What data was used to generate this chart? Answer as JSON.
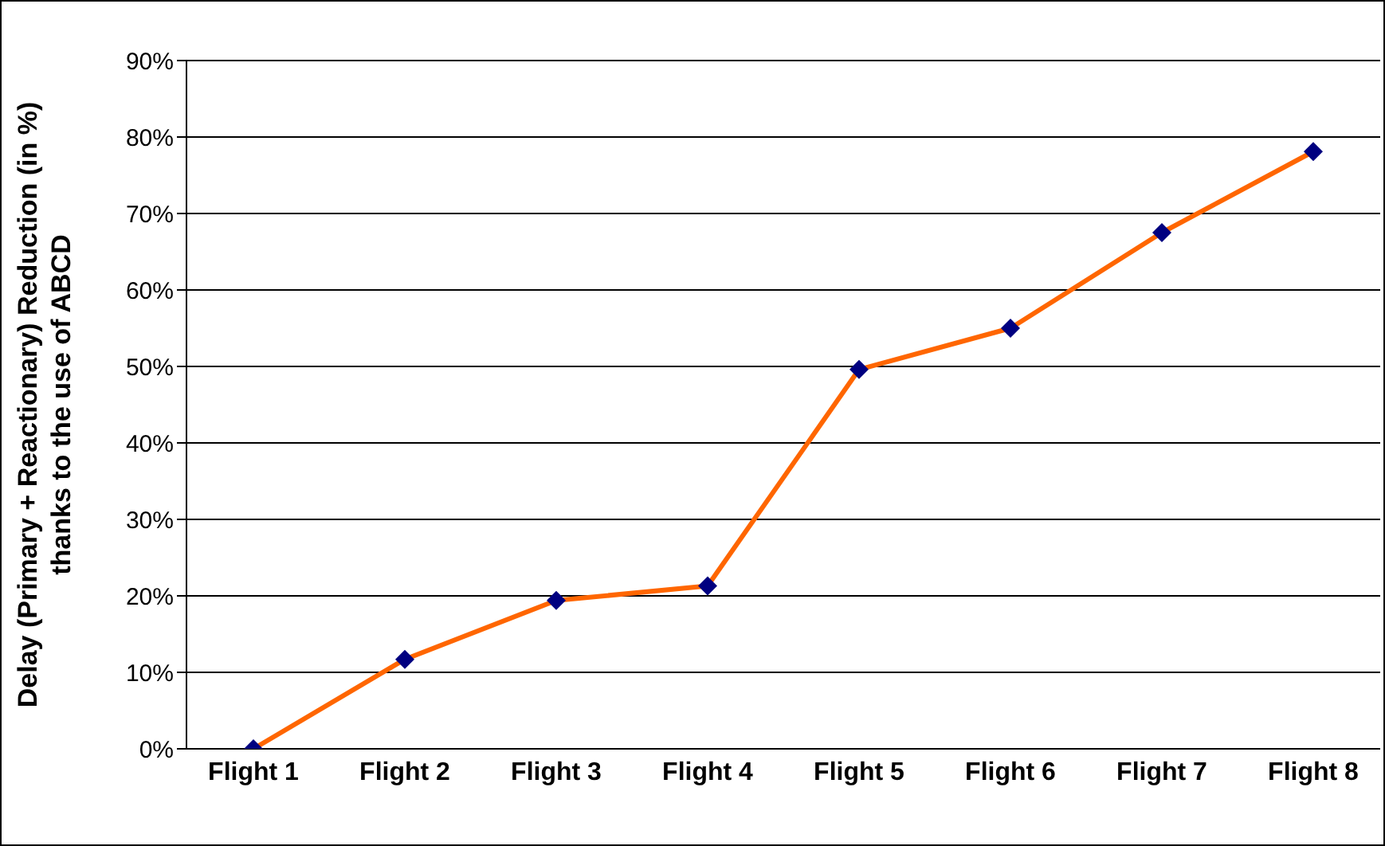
{
  "chart_data": {
    "type": "line",
    "ylabel": "Delay (Primary + Reactionary) Reduction (in %)\nthanks to the use of ABCD",
    "categories": [
      "Flight 1",
      "Flight 2",
      "Flight 3",
      "Flight 4",
      "Flight 5",
      "Flight 6",
      "Flight 7",
      "Flight 8"
    ],
    "series": [
      {
        "color": "#ff6600",
        "colors": [
          "#000080",
          "#000080",
          "#000080",
          "#000080",
          "#000080",
          "#000080",
          "#000080",
          "#000080"
        ],
        "values": [
          0,
          11.7,
          19.4,
          21.3,
          49.6,
          55,
          67.5,
          78.1
        ]
      }
    ],
    "ylim": [
      0,
      90
    ],
    "yticks": [
      {
        "value": 0,
        "label": "0%"
      },
      {
        "value": 10,
        "label": "10%"
      },
      {
        "value": 20,
        "label": "20%"
      },
      {
        "value": 30,
        "label": "30%"
      },
      {
        "value": 40,
        "label": "40%"
      },
      {
        "value": 50,
        "label": "50%"
      },
      {
        "value": 60,
        "label": "60%"
      },
      {
        "value": 70,
        "label": "70%"
      },
      {
        "value": 80,
        "label": "80%"
      },
      {
        "value": 90,
        "label": "90%"
      }
    ],
    "grid": "y",
    "marker": "diamond",
    "line_style": "solid",
    "legend": false
  }
}
